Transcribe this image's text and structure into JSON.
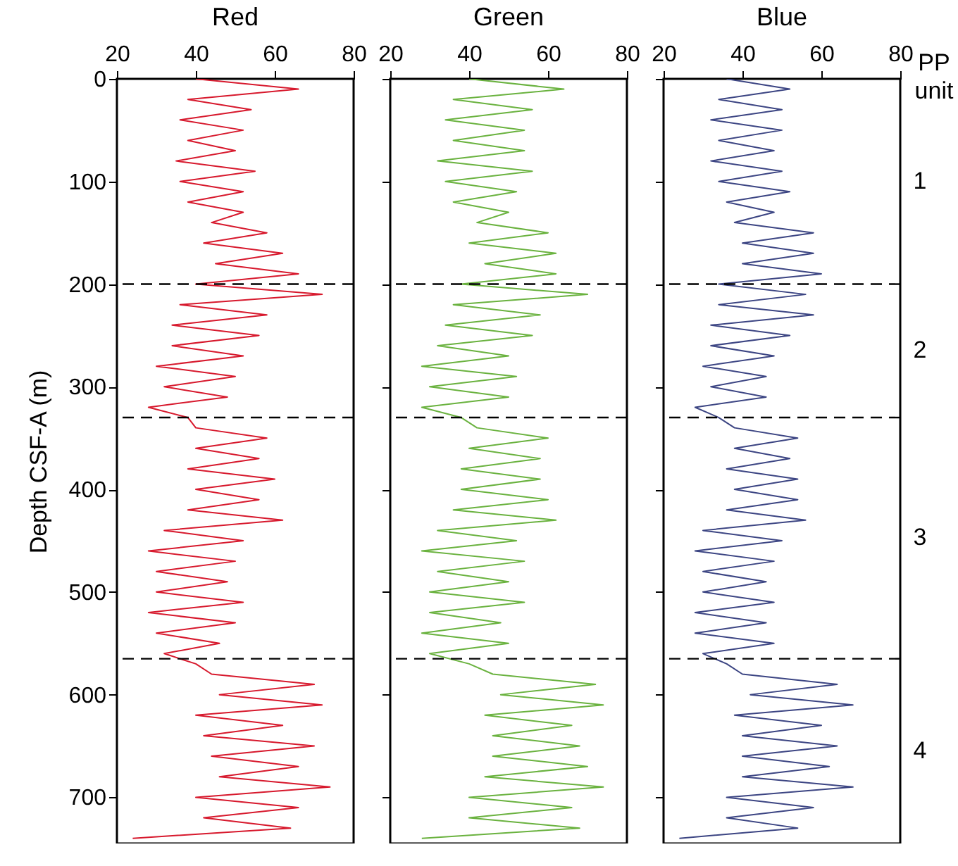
{
  "chart_data": [
    {
      "type": "line",
      "title": "Red",
      "ylabel": "Depth CSF-A (m)",
      "xlim": [
        20,
        80
      ],
      "xticks": [
        20,
        40,
        60,
        80
      ],
      "ylim": [
        745,
        0
      ],
      "yticks": [
        0,
        100,
        200,
        300,
        400,
        500,
        600,
        700
      ],
      "grid": false,
      "series": [
        {
          "color": "#d7192d",
          "x": [
            40,
            66,
            38,
            54,
            36,
            52,
            38,
            50,
            35,
            55,
            36,
            52,
            38,
            52,
            44,
            58,
            42,
            62,
            45,
            66,
            40,
            72,
            36,
            58,
            34,
            56,
            34,
            52,
            30,
            50,
            32,
            48,
            28,
            38,
            40,
            58,
            40,
            56,
            38,
            60,
            40,
            56,
            38,
            62,
            32,
            52,
            28,
            50,
            30,
            48,
            30,
            52,
            28,
            50,
            30,
            46,
            32,
            40,
            44,
            70,
            46,
            72,
            40,
            62,
            42,
            70,
            44,
            66,
            46,
            74,
            40,
            66,
            42,
            64,
            24
          ],
          "values": [
            0,
            10,
            20,
            30,
            40,
            50,
            60,
            70,
            80,
            90,
            100,
            110,
            120,
            130,
            140,
            150,
            160,
            170,
            180,
            190,
            200,
            210,
            220,
            230,
            240,
            250,
            260,
            270,
            280,
            290,
            300,
            310,
            320,
            330,
            340,
            350,
            360,
            370,
            380,
            390,
            400,
            410,
            420,
            430,
            440,
            450,
            460,
            470,
            480,
            490,
            500,
            510,
            520,
            530,
            540,
            550,
            560,
            570,
            580,
            590,
            600,
            610,
            620,
            630,
            640,
            650,
            660,
            670,
            680,
            690,
            700,
            710,
            720,
            730,
            740
          ]
        }
      ],
      "ref_lines": [
        {
          "axis": "y",
          "value": 200,
          "color": "#000000",
          "line_style": "dashed"
        },
        {
          "axis": "y",
          "value": 330,
          "color": "#000000",
          "line_style": "dashed"
        },
        {
          "axis": "y",
          "value": 565,
          "color": "#000000",
          "line_style": "dashed"
        }
      ]
    },
    {
      "type": "line",
      "title": "Green",
      "xlim": [
        20,
        80
      ],
      "xticks": [
        20,
        40,
        60,
        80
      ],
      "ylim": [
        745,
        0
      ],
      "yticks": [
        0,
        100,
        200,
        300,
        400,
        500,
        600,
        700
      ],
      "tick_labels": "x",
      "grid": false,
      "series": [
        {
          "color": "#6ab23f",
          "x": [
            40,
            64,
            36,
            56,
            34,
            54,
            36,
            54,
            32,
            56,
            34,
            52,
            36,
            50,
            42,
            60,
            40,
            62,
            44,
            62,
            38,
            70,
            36,
            58,
            34,
            56,
            32,
            50,
            28,
            52,
            30,
            50,
            28,
            38,
            42,
            60,
            40,
            58,
            38,
            58,
            38,
            60,
            36,
            62,
            32,
            52,
            28,
            54,
            32,
            50,
            30,
            54,
            30,
            48,
            28,
            50,
            30,
            40,
            46,
            72,
            48,
            74,
            44,
            66,
            46,
            68,
            46,
            70,
            44,
            74,
            40,
            66,
            40,
            68,
            28
          ],
          "values": [
            0,
            10,
            20,
            30,
            40,
            50,
            60,
            70,
            80,
            90,
            100,
            110,
            120,
            130,
            140,
            150,
            160,
            170,
            180,
            190,
            200,
            210,
            220,
            230,
            240,
            250,
            260,
            270,
            280,
            290,
            300,
            310,
            320,
            330,
            340,
            350,
            360,
            370,
            380,
            390,
            400,
            410,
            420,
            430,
            440,
            450,
            460,
            470,
            480,
            490,
            500,
            510,
            520,
            530,
            540,
            550,
            560,
            570,
            580,
            590,
            600,
            610,
            620,
            630,
            640,
            650,
            660,
            670,
            680,
            690,
            700,
            710,
            720,
            730,
            740
          ]
        }
      ],
      "ref_lines": [
        {
          "axis": "y",
          "value": 200,
          "color": "#000000",
          "line_style": "dashed"
        },
        {
          "axis": "y",
          "value": 330,
          "color": "#000000",
          "line_style": "dashed"
        },
        {
          "axis": "y",
          "value": 565,
          "color": "#000000",
          "line_style": "dashed"
        }
      ]
    },
    {
      "type": "line",
      "title": "Blue",
      "xlim": [
        20,
        80
      ],
      "xticks": [
        20,
        40,
        60,
        80
      ],
      "ylim": [
        745,
        0
      ],
      "yticks": [
        0,
        100,
        200,
        300,
        400,
        500,
        600,
        700
      ],
      "tick_labels": "x",
      "grid": false,
      "series": [
        {
          "color": "#3c4583",
          "x": [
            36,
            52,
            34,
            50,
            32,
            50,
            34,
            48,
            32,
            50,
            34,
            52,
            36,
            48,
            38,
            58,
            40,
            58,
            40,
            60,
            34,
            56,
            34,
            58,
            32,
            52,
            32,
            48,
            30,
            46,
            32,
            46,
            28,
            34,
            38,
            54,
            38,
            52,
            36,
            54,
            38,
            54,
            36,
            56,
            30,
            50,
            28,
            48,
            30,
            46,
            30,
            48,
            28,
            46,
            28,
            48,
            30,
            36,
            40,
            64,
            42,
            68,
            38,
            60,
            40,
            64,
            40,
            62,
            40,
            68,
            36,
            58,
            36,
            54,
            24
          ],
          "values": [
            0,
            10,
            20,
            30,
            40,
            50,
            60,
            70,
            80,
            90,
            100,
            110,
            120,
            130,
            140,
            150,
            160,
            170,
            180,
            190,
            200,
            210,
            220,
            230,
            240,
            250,
            260,
            270,
            280,
            290,
            300,
            310,
            320,
            330,
            340,
            350,
            360,
            370,
            380,
            390,
            400,
            410,
            420,
            430,
            440,
            450,
            460,
            470,
            480,
            490,
            500,
            510,
            520,
            530,
            540,
            550,
            560,
            570,
            580,
            590,
            600,
            610,
            620,
            630,
            640,
            650,
            660,
            670,
            680,
            690,
            700,
            710,
            720,
            730,
            740
          ]
        }
      ],
      "ref_lines": [
        {
          "axis": "y",
          "value": 200,
          "color": "#000000",
          "line_style": "dashed"
        },
        {
          "axis": "y",
          "value": 330,
          "color": "#000000",
          "line_style": "dashed"
        },
        {
          "axis": "y",
          "value": 565,
          "color": "#000000",
          "line_style": "dashed"
        }
      ],
      "annotations": [
        "PP unit",
        "1",
        "2",
        "3",
        "4"
      ]
    }
  ]
}
